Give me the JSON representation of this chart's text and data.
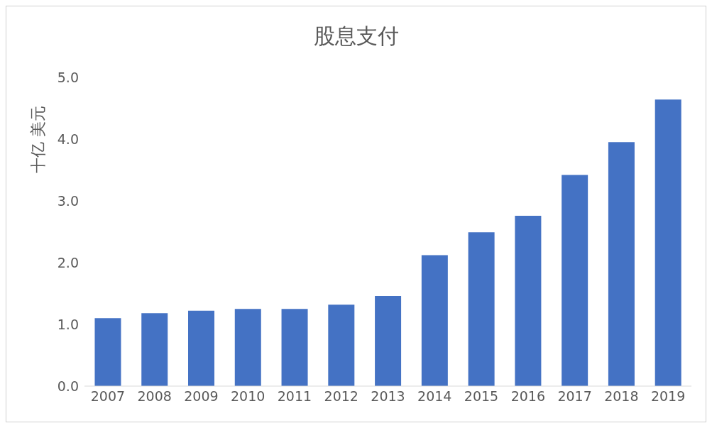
{
  "chart_data": {
    "type": "bar",
    "title": "股息支付",
    "ylabel": "十亿 美元",
    "categories": [
      "2007",
      "2008",
      "2009",
      "2010",
      "2011",
      "2012",
      "2013",
      "2014",
      "2015",
      "2016",
      "2017",
      "2018",
      "2019"
    ],
    "values": [
      1.1,
      1.18,
      1.22,
      1.25,
      1.25,
      1.32,
      1.46,
      2.12,
      2.49,
      2.76,
      3.42,
      3.95,
      4.64
    ],
    "color": "#4472c4",
    "ylim": [
      0,
      5
    ],
    "yticks": [
      {
        "value": 0,
        "label": "0.0"
      },
      {
        "value": 1,
        "label": "1.0"
      },
      {
        "value": 2,
        "label": "2.0"
      },
      {
        "value": 3,
        "label": "3.0"
      },
      {
        "value": 4,
        "label": "4.0"
      },
      {
        "value": 5,
        "label": "5.0"
      }
    ],
    "grid": false,
    "legend": false
  }
}
